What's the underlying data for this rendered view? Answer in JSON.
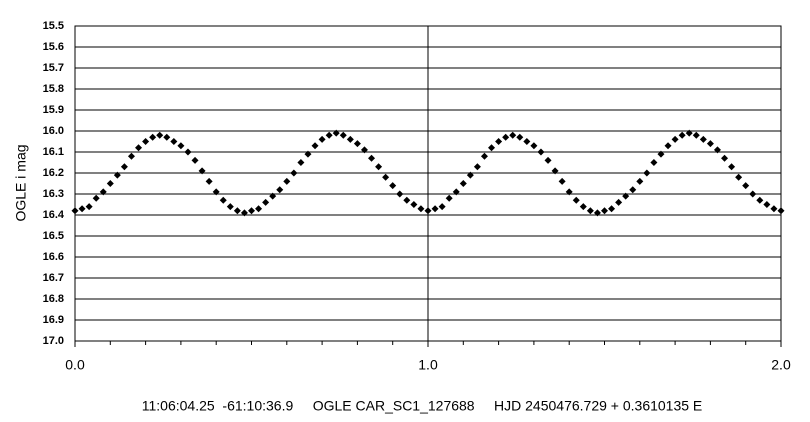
{
  "chart_data": {
    "type": "scatter",
    "y_label": "OGLE i mag",
    "caption": "11:06:04.25  -61:10:36.9     OGLE CAR_SC1_127688     HJD 2450476.729 + 0.3610135 E",
    "xlim": [
      0,
      2
    ],
    "xticks": [
      {
        "value": 0,
        "label": "0.0"
      },
      {
        "value": 1,
        "label": "1.0"
      },
      {
        "value": 2,
        "label": "2.0"
      }
    ],
    "xminorticks": [
      0.1,
      0.2,
      0.3,
      0.4,
      0.5,
      0.6,
      0.7,
      0.8,
      0.9,
      1.1,
      1.2,
      1.3,
      1.4,
      1.5,
      1.6,
      1.7,
      1.8,
      1.9
    ],
    "ylim": [
      15.5,
      17.0
    ],
    "y_inverted": true,
    "yticks": [
      15.5,
      15.6,
      15.7,
      15.8,
      15.9,
      {
        "value": 16.0,
        "label": "16.0"
      },
      16.1,
      16.2,
      16.3,
      16.4,
      16.5,
      16.6,
      16.7,
      16.8,
      16.9,
      {
        "value": 17.0,
        "label": "17.0"
      }
    ],
    "grid": true,
    "color": "#000000",
    "x": [
      0,
      0.02,
      0.04,
      0.06,
      0.08,
      0.1,
      0.12,
      0.14,
      0.16,
      0.18,
      0.2,
      0.22,
      0.24,
      0.26,
      0.28,
      0.3,
      0.32,
      0.34,
      0.36,
      0.38,
      0.4,
      0.42,
      0.44,
      0.46,
      0.48,
      0.5,
      0.52,
      0.54,
      0.56,
      0.58,
      0.6,
      0.62,
      0.64,
      0.66,
      0.68,
      0.7,
      0.72,
      0.74,
      0.76,
      0.78,
      0.8,
      0.82,
      0.84,
      0.86,
      0.88,
      0.9,
      0.92,
      0.94,
      0.96,
      0.98,
      1,
      1.02,
      1.04,
      1.06,
      1.08,
      1.1,
      1.12,
      1.14,
      1.16,
      1.18,
      1.2,
      1.22,
      1.24,
      1.26,
      1.28,
      1.3,
      1.32,
      1.34,
      1.36,
      1.38,
      1.4,
      1.42,
      1.44,
      1.46,
      1.48,
      1.5,
      1.52,
      1.54,
      1.56,
      1.58,
      1.6,
      1.62,
      1.64,
      1.66,
      1.68,
      1.7,
      1.72,
      1.74,
      1.76,
      1.78,
      1.8,
      1.82,
      1.84,
      1.86,
      1.88,
      1.9,
      1.92,
      1.94,
      1.96,
      1.98,
      2
    ],
    "values": [
      16.38,
      16.37,
      16.36,
      16.32,
      16.29,
      16.25,
      16.21,
      16.17,
      16.12,
      16.08,
      16.05,
      16.03,
      16.02,
      16.03,
      16.05,
      16.07,
      16.1,
      16.14,
      16.19,
      16.24,
      16.29,
      16.33,
      16.36,
      16.38,
      16.39,
      16.38,
      16.37,
      16.34,
      16.31,
      16.28,
      16.24,
      16.2,
      16.15,
      16.11,
      16.07,
      16.04,
      16.02,
      16.01,
      16.02,
      16.04,
      16.06,
      16.09,
      16.13,
      16.17,
      16.22,
      16.26,
      16.3,
      16.33,
      16.35,
      16.37,
      16.38,
      16.37,
      16.36,
      16.32,
      16.29,
      16.25,
      16.21,
      16.17,
      16.12,
      16.08,
      16.05,
      16.03,
      16.02,
      16.03,
      16.05,
      16.07,
      16.1,
      16.14,
      16.19,
      16.24,
      16.29,
      16.33,
      16.36,
      16.38,
      16.39,
      16.38,
      16.37,
      16.34,
      16.31,
      16.28,
      16.24,
      16.2,
      16.15,
      16.11,
      16.07,
      16.04,
      16.02,
      16.01,
      16.02,
      16.04,
      16.06,
      16.09,
      16.13,
      16.17,
      16.22,
      16.26,
      16.3,
      16.33,
      16.35,
      16.37,
      16.38
    ]
  }
}
